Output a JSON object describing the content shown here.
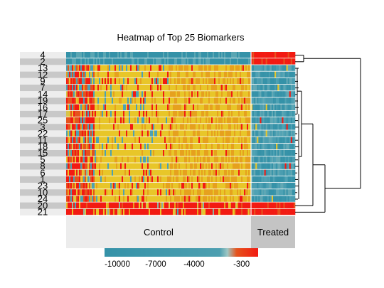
{
  "chart_data": {
    "type": "heatmap",
    "title": "Heatmap of Top 25 Biomarkers",
    "row_labels": [
      "4",
      "2",
      "13",
      "12",
      "9",
      "7",
      "14",
      "19",
      "16",
      "17",
      "25",
      "3",
      "22",
      "11",
      "18",
      "15",
      "5",
      "8",
      "6",
      "1",
      "23",
      "10",
      "24",
      "20",
      "21"
    ],
    "column_groups": [
      {
        "label": "Control",
        "columns": 130
      },
      {
        "label": "Treated",
        "columns": 30
      }
    ],
    "colorscale": {
      "ticks": [
        -10000,
        -7000,
        -4000,
        -300
      ],
      "tick_labels": [
        "-10000",
        "-7000",
        "-4000",
        "-300"
      ],
      "range": [
        -11000,
        1000
      ],
      "colors": [
        "#3592a8",
        "#4d9fb0",
        "#e8c629",
        "#e6a11e",
        "#e5531c",
        "#f21a12"
      ]
    },
    "dendrogram": "rows"
  }
}
